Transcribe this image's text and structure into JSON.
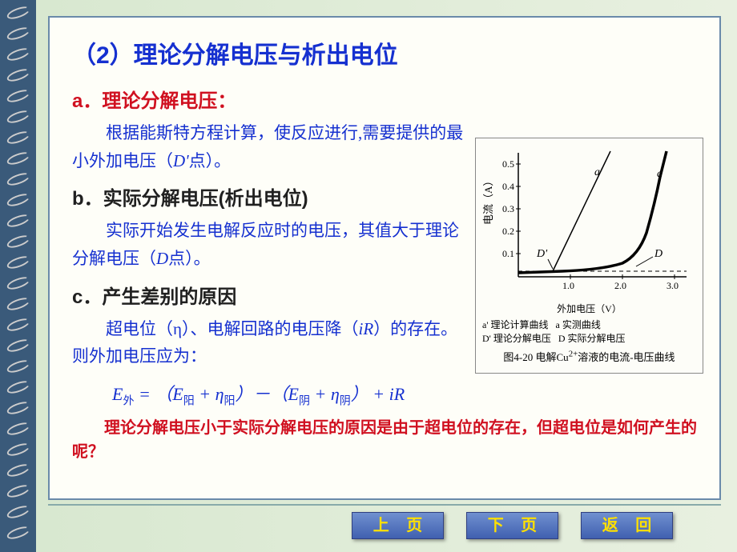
{
  "title": "（2）理论分解电压与析出电位",
  "sections": {
    "a": {
      "heading": "a．理论分解电压：",
      "body": "根据能斯特方程计算，使反应进行,需要提供的最小外加电压（",
      "body_italic": "D'",
      "body_end": "点）。"
    },
    "b": {
      "heading": "b．实际分解电压(析出电位)",
      "body": "实际开始发生电解反应时的电压，其值大于理论分解电压（",
      "body_italic": "D",
      "body_end": "点）。"
    },
    "c": {
      "heading": "c．产生差别的原因",
      "body1": "超电位（η）、电解回路的电压降（",
      "body1_italic": "iR",
      "body1_end": "）的存在。则外加电压应为："
    }
  },
  "formula": {
    "lhs": "E",
    "lhs_sub": "外",
    "eq": " = （",
    "t1": "E",
    "t1_sub": "阳",
    "plus1": " + η",
    "t2_sub": "阳",
    "mid": "）－（",
    "t3": "E",
    "t3_sub": "阴",
    "plus2": " + η",
    "t4_sub": "阴",
    "end": "） + ",
    "ir": "iR"
  },
  "question": "理论分解电压小于实际分解电压的原因是由于超电位的存在，但超电位是如何产生的呢？",
  "figure": {
    "ylabel": "电流（A）",
    "xlabel": "外加电压（V）",
    "yticks": [
      "0.1",
      "0.2",
      "0.3",
      "0.4",
      "0.5"
    ],
    "xticks": [
      "1.0",
      "2.0",
      "3.0"
    ],
    "labels": {
      "aprime": "a'",
      "a": "a",
      "Dprime": "D'",
      "D": "D"
    },
    "legend_a_prime": "a' 理论计算曲线",
    "legend_a": "a 实测曲线",
    "legend_D_prime": "D' 理论分解电压",
    "legend_D": "D 实际分解电压",
    "caption_prefix": "图4-20 电解Cu",
    "caption_sup": "2+",
    "caption_suffix": "溶液的电流-电压曲线",
    "style": {
      "line_color": "#000000",
      "axis_color": "#000000",
      "bg": "#fdfdf8"
    }
  },
  "nav": {
    "prev": "上 页",
    "next": "下 页",
    "back": "返 回"
  },
  "colors": {
    "title": "#1530d0",
    "subtitle_red": "#d01020",
    "body": "#1530d0",
    "btn_text": "#ffe000"
  }
}
